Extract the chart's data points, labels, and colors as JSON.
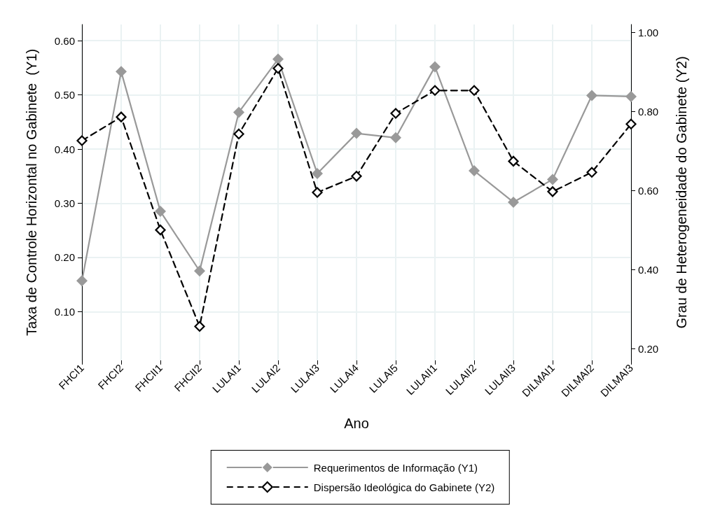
{
  "chart_data": {
    "type": "line",
    "xlabel": "Ano",
    "ylabel": "Taxa de Controle Horizontal no Gabinete  (Y1)",
    "y2label": "Grau de Heterogeneidade do Gabinete (Y2)",
    "categories": [
      "FHCI1",
      "FHCI2",
      "FHCII1",
      "FHCII2",
      "LULAI1",
      "LULAI2",
      "LULAI3",
      "LULAI4",
      "LULAI5",
      "LULAII1",
      "LULAII2",
      "LULAII3",
      "DILMAI1",
      "DILMAI2",
      "DILMAI3"
    ],
    "series": [
      {
        "name": "Requerimentos de Informação (Y1)",
        "color": "#999999",
        "line_style": "solid",
        "marker": "diamond",
        "values": [
          0.157,
          0.543,
          0.285,
          0.175,
          0.468,
          0.566,
          0.355,
          0.429,
          0.421,
          0.552,
          0.36,
          0.302,
          0.344,
          0.499,
          0.497
        ]
      },
      {
        "name": "Dispersão Ideológica do Gabinete (Y2)",
        "color": "#000000",
        "axis": "y2",
        "line_style": "dashed",
        "marker": "diamond",
        "values": [
          0.726,
          0.786,
          0.5,
          0.256,
          0.743,
          0.909,
          0.595,
          0.636,
          0.795,
          0.853,
          0.853,
          0.674,
          0.597,
          0.646,
          0.768
        ]
      }
    ],
    "ylim": [
      0.01,
      0.63
    ],
    "yticks": [
      {
        "value": 0.1,
        "label": "0.10"
      },
      {
        "value": 0.2,
        "label": "0.20"
      },
      {
        "value": 0.3,
        "label": "0.30"
      },
      {
        "value": 0.4,
        "label": "0.40"
      },
      {
        "value": 0.5,
        "label": "0.50"
      },
      {
        "value": 0.6,
        "label": "0.60"
      }
    ],
    "y2lim": [
      0.17,
      1.02
    ],
    "y2ticks": [
      {
        "value": 0.2,
        "label": "0.20"
      },
      {
        "value": 0.4,
        "label": "0.40"
      },
      {
        "value": 0.6,
        "label": "0.60"
      },
      {
        "value": 0.8,
        "label": "0.80"
      },
      {
        "value": 1.0,
        "label": "1.00"
      }
    ],
    "grid": true,
    "legend": "bottom"
  }
}
